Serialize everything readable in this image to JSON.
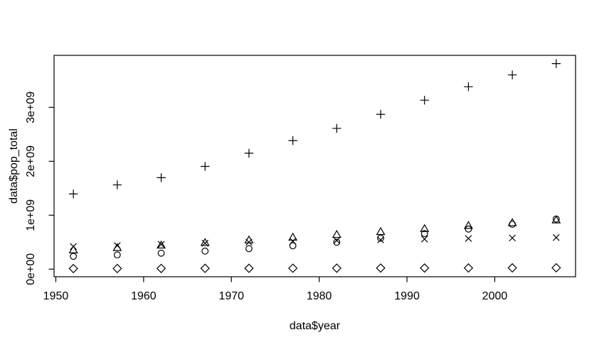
{
  "colors": {
    "background": "#ffffff",
    "foreground": "#000000"
  },
  "chart_data": {
    "type": "scatter",
    "title": "",
    "xlabel": "data$year",
    "ylabel": "data$pop_total",
    "grid": false,
    "legend": "none",
    "xlim": [
      1949.8,
      2009.2
    ],
    "ylim": [
      -141000000,
      3964500000
    ],
    "x_ticks": [
      {
        "value": 1950,
        "label": "1950"
      },
      {
        "value": 1960,
        "label": "1960"
      },
      {
        "value": 1970,
        "label": "1970"
      },
      {
        "value": 1980,
        "label": "1980"
      },
      {
        "value": 1990,
        "label": "1990"
      },
      {
        "value": 2000,
        "label": "2000"
      }
    ],
    "y_ticks": [
      {
        "value": 0,
        "label": "0e+00"
      },
      {
        "value": 1000000000,
        "label": "1e+09"
      },
      {
        "value": 2000000000,
        "label": "2e+09"
      },
      {
        "value": 3000000000,
        "label": "3e+09"
      }
    ],
    "x": [
      1952,
      1957,
      1962,
      1967,
      1972,
      1977,
      1982,
      1987,
      1992,
      1997,
      2002,
      2007
    ],
    "series": [
      {
        "name": "circle-series",
        "symbol": "circle",
        "values": [
          237000000,
          265000000,
          296000000,
          335000000,
          380000000,
          433000000,
          499000000,
          575000000,
          659000000,
          743000000,
          833000000,
          930000000
        ]
      },
      {
        "name": "triangle-series",
        "symbol": "triangle",
        "values": [
          345000000,
          387000000,
          433000000,
          480000000,
          529000000,
          579000000,
          630000000,
          683000000,
          739000000,
          797000000,
          849000000,
          899000000
        ]
      },
      {
        "name": "plus-series",
        "symbol": "plus",
        "values": [
          1395000000,
          1562000000,
          1696000000,
          1905000000,
          2150000000,
          2384000000,
          2610000000,
          2871000000,
          3133000000,
          3383000000,
          3602000000,
          3812000000
        ]
      },
      {
        "name": "x-series",
        "symbol": "x",
        "values": [
          419000000,
          437000000,
          460000000,
          481000000,
          500000000,
          517000000,
          531000000,
          543000000,
          558000000,
          569000000,
          578000000,
          586000000
        ]
      },
      {
        "name": "diamond-series",
        "symbol": "diamond",
        "values": [
          11000000,
          12000000,
          13000000,
          15000000,
          16000000,
          17000000,
          18000000,
          20000000,
          21000000,
          22000000,
          24000000,
          25000000
        ]
      }
    ]
  }
}
